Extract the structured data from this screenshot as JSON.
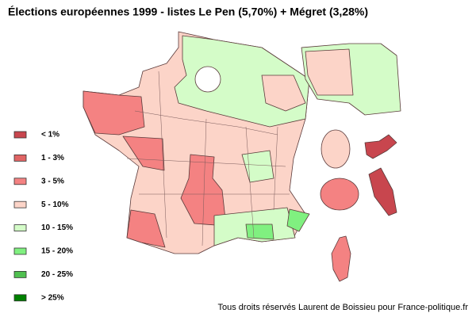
{
  "title": "Élections européennes 1999 - listes Le Pen (5,70%) + Mégret (3,28%)",
  "legend": {
    "items": [
      {
        "label": "< 1%",
        "color": "#c8464e"
      },
      {
        "label": "1 - 3%",
        "color": "#e06464"
      },
      {
        "label": "3 - 5%",
        "color": "#f48282"
      },
      {
        "label": "5 - 10%",
        "color": "#fcd4c8"
      },
      {
        "label": "10 - 15%",
        "color": "#d4fcc8"
      },
      {
        "label": "15 - 20%",
        "color": "#80f080"
      },
      {
        "label": "20 - 25%",
        "color": "#50c050"
      },
      {
        "label": "> 25%",
        "color": "#008000"
      }
    ]
  },
  "credit": "Tous droits réservés Laurent de Boissieu pour France-politique.fr"
}
